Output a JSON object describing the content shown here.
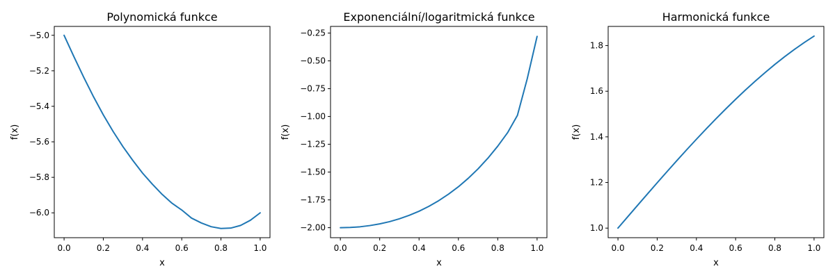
{
  "chart_data": [
    {
      "type": "line",
      "title": "Polynomická funkce",
      "xlabel": "x",
      "ylabel": "f(x)",
      "xlim": [
        -0.05,
        1.05
      ],
      "ylim": [
        -6.14,
        -4.95
      ],
      "xticks": [
        0.0,
        0.2,
        0.4,
        0.6,
        0.8,
        1.0
      ],
      "xtick_labels": [
        "0.0",
        "0.2",
        "0.4",
        "0.6",
        "0.8",
        "1.0"
      ],
      "yticks": [
        -5.0,
        -5.2,
        -5.4,
        -5.6,
        -5.8,
        -6.0
      ],
      "ytick_labels": [
        "−5.0",
        "−5.2",
        "−5.4",
        "−5.6",
        "−5.8",
        "−6.0"
      ],
      "grid": false,
      "series": [
        {
          "color": "#1f77b4",
          "x": [
            0.0,
            0.05,
            0.1,
            0.15,
            0.2,
            0.25,
            0.3,
            0.35,
            0.4,
            0.45,
            0.5,
            0.55,
            0.6,
            0.65,
            0.7,
            0.75,
            0.8,
            0.85,
            0.9,
            0.95,
            1.0
          ],
          "y": [
            -5.0,
            -5.1199,
            -5.236,
            -5.3459,
            -5.448,
            -5.5416,
            -5.627,
            -5.7041,
            -5.776,
            -5.8384,
            -5.896,
            -5.9457,
            -5.984,
            -6.0296,
            -6.057,
            -6.0781,
            -6.088,
            -6.0859,
            -6.071,
            -6.0419,
            -6.0
          ]
        }
      ]
    },
    {
      "type": "line",
      "title": "Exponenciální/logaritmická funkce",
      "xlabel": "x",
      "ylabel": "f(x)",
      "xlim": [
        -0.05,
        1.05
      ],
      "ylim": [
        -2.09,
        -0.19
      ],
      "xticks": [
        0.0,
        0.2,
        0.4,
        0.6,
        0.8,
        1.0
      ],
      "xtick_labels": [
        "0.0",
        "0.2",
        "0.4",
        "0.6",
        "0.8",
        "1.0"
      ],
      "yticks": [
        -0.25,
        -0.5,
        -0.75,
        -1.0,
        -1.25,
        -1.5,
        -1.75,
        -2.0
      ],
      "ytick_labels": [
        "−0.25",
        "−0.50",
        "−0.75",
        "−1.00",
        "−1.25",
        "−1.50",
        "−1.75",
        "−2.00"
      ],
      "grid": false,
      "series": [
        {
          "color": "#1f77b4",
          "x": [
            0.0,
            0.05,
            0.1,
            0.15,
            0.2,
            0.25,
            0.3,
            0.35,
            0.4,
            0.45,
            0.5,
            0.55,
            0.6,
            0.65,
            0.7,
            0.75,
            0.8,
            0.85,
            0.9,
            0.95,
            1.0
          ],
          "y": [
            -2.0,
            -1.998,
            -1.992,
            -1.981,
            -1.966,
            -1.946,
            -1.92,
            -1.889,
            -1.852,
            -1.808,
            -1.757,
            -1.698,
            -1.632,
            -1.556,
            -1.471,
            -1.375,
            -1.267,
            -1.146,
            -0.99,
            -0.66,
            -0.28
          ]
        }
      ]
    },
    {
      "type": "line",
      "title": "Harmonická funkce",
      "xlabel": "x",
      "ylabel": "f(x)",
      "xlim": [
        -0.05,
        1.05
      ],
      "ylim": [
        0.958,
        1.884
      ],
      "xticks": [
        0.0,
        0.2,
        0.4,
        0.6,
        0.8,
        1.0
      ],
      "xtick_labels": [
        "0.0",
        "0.2",
        "0.4",
        "0.6",
        "0.8",
        "1.0"
      ],
      "yticks": [
        1.0,
        1.2,
        1.4,
        1.6,
        1.8
      ],
      "ytick_labels": [
        "1.0",
        "1.2",
        "1.4",
        "1.6",
        "1.8"
      ],
      "grid": false,
      "series": [
        {
          "color": "#1f77b4",
          "x": [
            0.0,
            0.05,
            0.1,
            0.15,
            0.2,
            0.25,
            0.3,
            0.35,
            0.4,
            0.45,
            0.5,
            0.55,
            0.6,
            0.65,
            0.7,
            0.75,
            0.8,
            0.85,
            0.9,
            0.95,
            1.0
          ],
          "y": [
            1.0,
            1.05,
            1.0998,
            1.1494,
            1.1987,
            1.2474,
            1.2955,
            1.3429,
            1.3894,
            1.435,
            1.4794,
            1.5227,
            1.5646,
            1.6052,
            1.6442,
            1.6816,
            1.7174,
            1.7513,
            1.7833,
            1.8134,
            1.8415
          ]
        }
      ]
    }
  ]
}
